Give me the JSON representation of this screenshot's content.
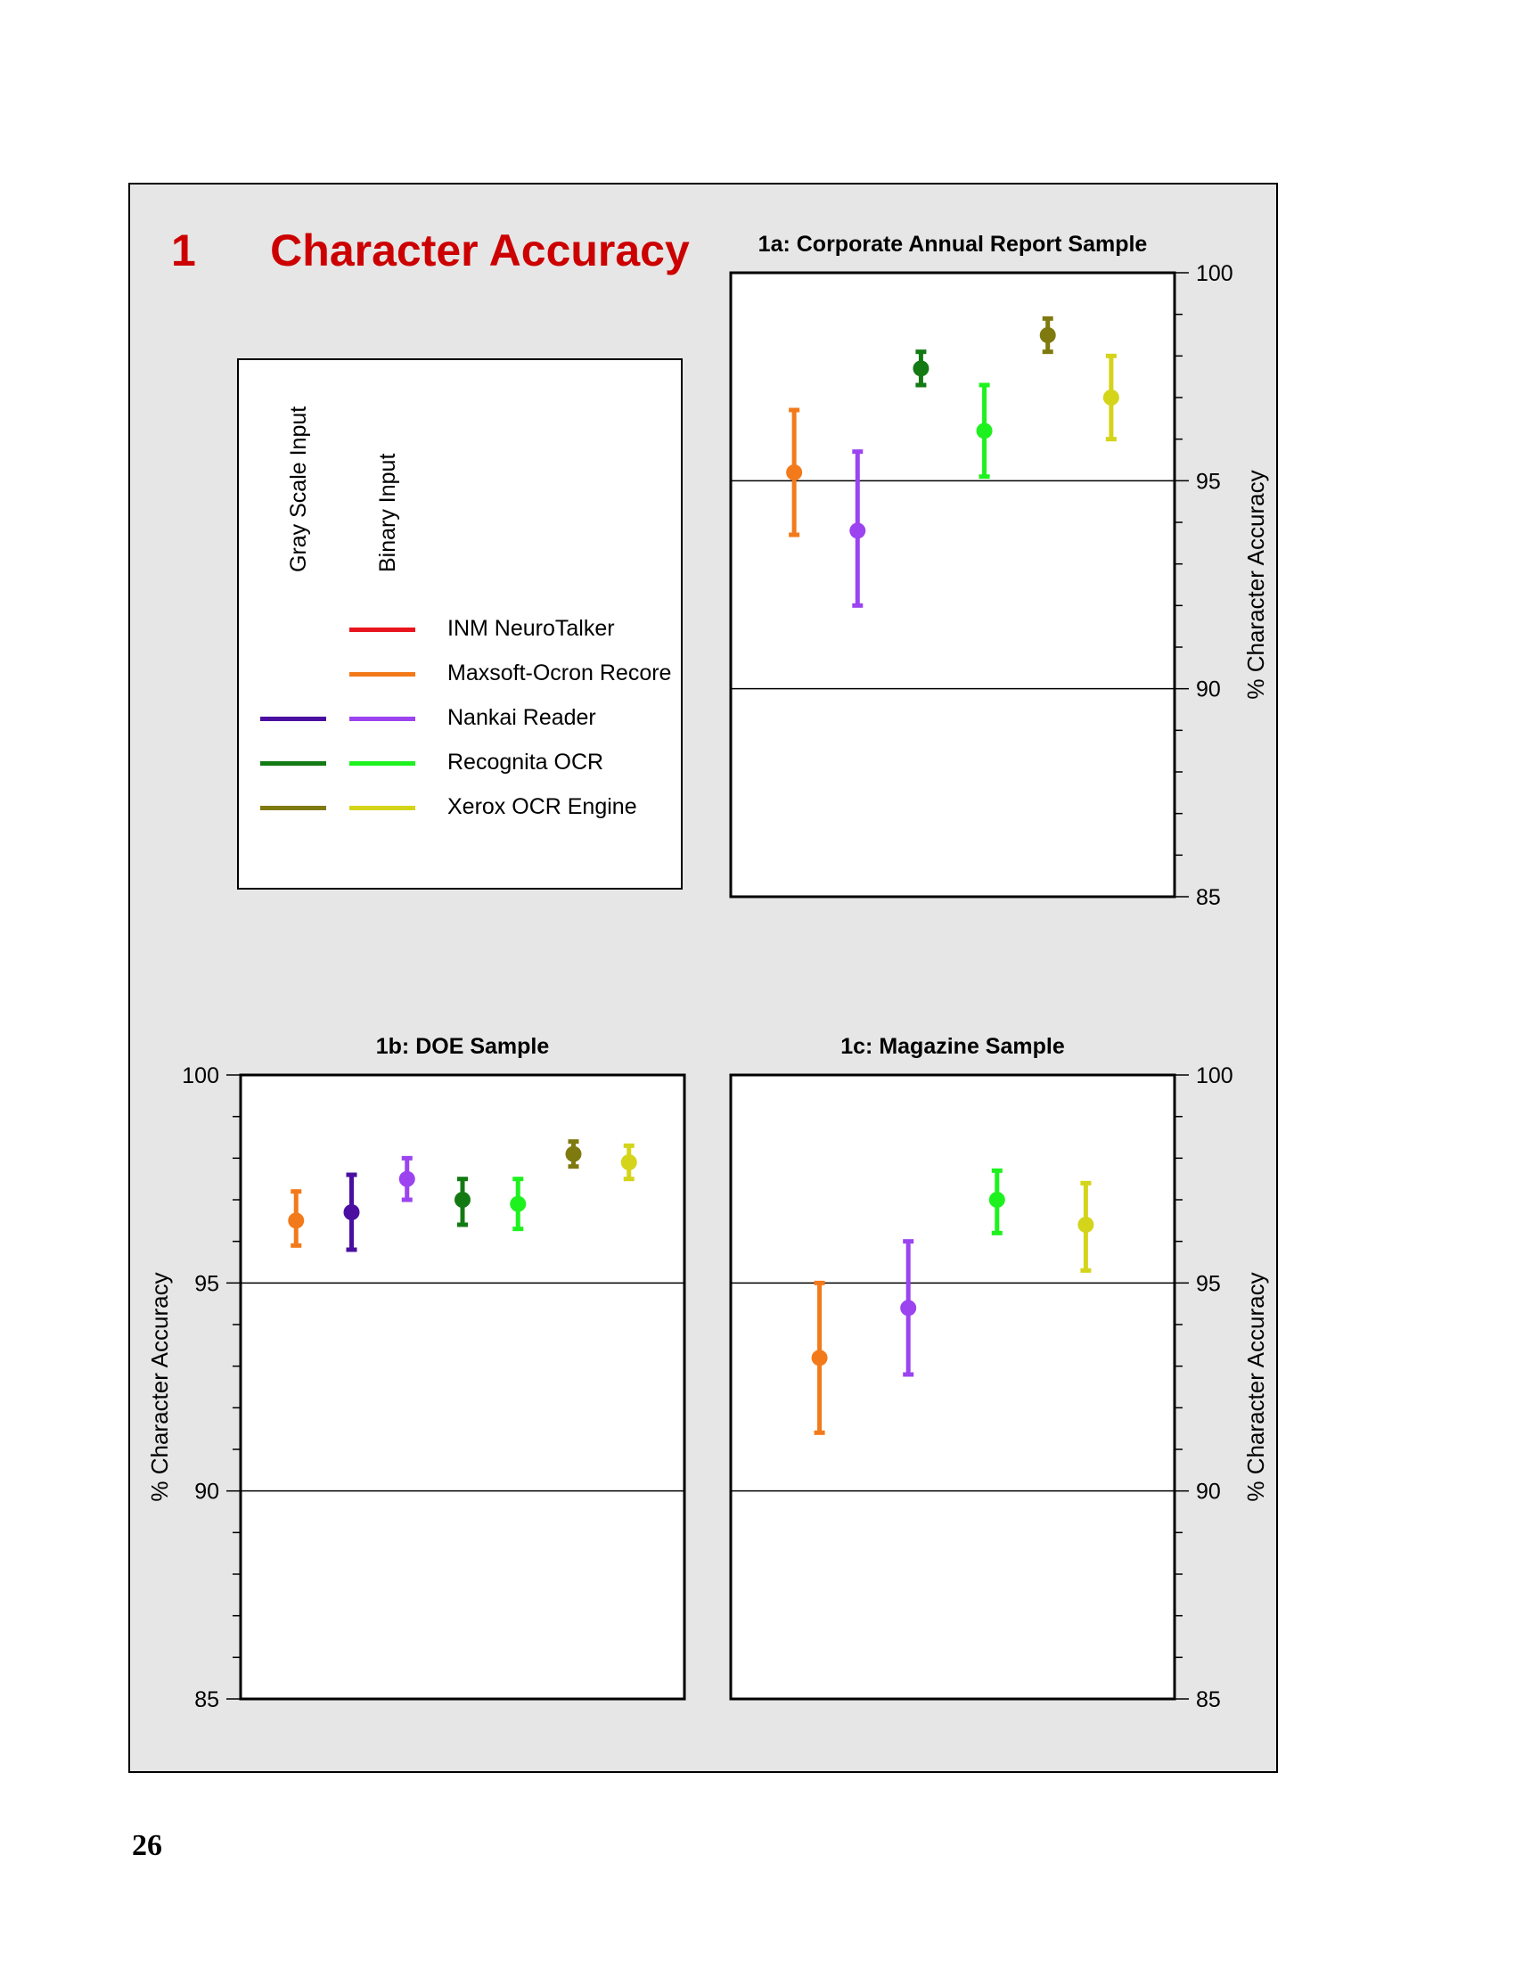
{
  "figure": {
    "number": "1",
    "title": "Character Accuracy",
    "page_number": "26"
  },
  "legend": {
    "column_headers": [
      "Gray Scale Input",
      "Binary Input"
    ],
    "entries": [
      {
        "label": "INM NeuroTalker",
        "gray_color": null,
        "binary_color": "#e8131c"
      },
      {
        "label": "Maxsoft-Ocron Recore",
        "gray_color": null,
        "binary_color": "#f37a1a"
      },
      {
        "label": "Nankai Reader",
        "gray_color": "#4a0fa0",
        "binary_color": "#9b44f0"
      },
      {
        "label": "Recognita OCR",
        "gray_color": "#137a13",
        "binary_color": "#1ef21e"
      },
      {
        "label": "Xerox OCR Engine",
        "gray_color": "#7f7a10",
        "binary_color": "#d4d41a"
      }
    ]
  },
  "chart_data": [
    {
      "type": "scatter",
      "panel": "1a",
      "title": "1a:  Corporate Annual Report Sample",
      "ylabel": "% Character Accuracy",
      "ylim": [
        85,
        100
      ],
      "yticks": [
        "100",
        "95",
        "90",
        "85"
      ],
      "y_axis_side": "right",
      "reference_lines": [
        95,
        90
      ],
      "series": [
        {
          "system": "Maxsoft-Ocron Recore",
          "input": "Binary",
          "color": "#f37a1a",
          "y": 95.2,
          "low": 93.7,
          "high": 96.7
        },
        {
          "system": "Nankai Reader",
          "input": "Binary",
          "color": "#9b44f0",
          "y": 93.8,
          "low": 92.0,
          "high": 95.7
        },
        {
          "system": "Recognita OCR",
          "input": "Gray Scale",
          "color": "#137a13",
          "y": 97.7,
          "low": 97.3,
          "high": 98.1
        },
        {
          "system": "Recognita OCR",
          "input": "Binary",
          "color": "#1ef21e",
          "y": 96.2,
          "low": 95.1,
          "high": 97.3
        },
        {
          "system": "Xerox OCR Engine",
          "input": "Gray Scale",
          "color": "#7f7a10",
          "y": 98.5,
          "low": 98.1,
          "high": 98.9
        },
        {
          "system": "Xerox OCR Engine",
          "input": "Binary",
          "color": "#d4d41a",
          "y": 97.0,
          "low": 96.0,
          "high": 98.0
        }
      ]
    },
    {
      "type": "scatter",
      "panel": "1b",
      "title": "1b:  DOE Sample",
      "ylabel": "% Character Accuracy",
      "ylim": [
        85,
        100
      ],
      "yticks": [
        "100",
        "95",
        "90",
        "85"
      ],
      "y_axis_side": "left",
      "reference_lines": [
        95,
        90
      ],
      "series": [
        {
          "system": "Maxsoft-Ocron Recore",
          "input": "Binary",
          "color": "#f37a1a",
          "y": 96.5,
          "low": 95.9,
          "high": 97.2
        },
        {
          "system": "Nankai Reader",
          "input": "Gray Scale",
          "color": "#4a0fa0",
          "y": 96.7,
          "low": 95.8,
          "high": 97.6
        },
        {
          "system": "Nankai Reader",
          "input": "Binary",
          "color": "#9b44f0",
          "y": 97.5,
          "low": 97.0,
          "high": 98.0
        },
        {
          "system": "Recognita OCR",
          "input": "Gray Scale",
          "color": "#137a13",
          "y": 97.0,
          "low": 96.4,
          "high": 97.5
        },
        {
          "system": "Recognita OCR",
          "input": "Binary",
          "color": "#1ef21e",
          "y": 96.9,
          "low": 96.3,
          "high": 97.5
        },
        {
          "system": "Xerox OCR Engine",
          "input": "Gray Scale",
          "color": "#7f7a10",
          "y": 98.1,
          "low": 97.8,
          "high": 98.4
        },
        {
          "system": "Xerox OCR Engine",
          "input": "Binary",
          "color": "#d4d41a",
          "y": 97.9,
          "low": 97.5,
          "high": 98.3
        }
      ]
    },
    {
      "type": "scatter",
      "panel": "1c",
      "title": "1c:  Magazine Sample",
      "ylabel": "% Character Accuracy",
      "ylim": [
        85,
        100
      ],
      "yticks": [
        "100",
        "95",
        "90",
        "85"
      ],
      "y_axis_side": "right",
      "reference_lines": [
        95,
        90
      ],
      "series": [
        {
          "system": "Maxsoft-Ocron Recore",
          "input": "Binary",
          "color": "#f37a1a",
          "y": 93.2,
          "low": 91.4,
          "high": 95.0
        },
        {
          "system": "Nankai Reader",
          "input": "Binary",
          "color": "#9b44f0",
          "y": 94.4,
          "low": 92.8,
          "high": 96.0
        },
        {
          "system": "Recognita OCR",
          "input": "Binary",
          "color": "#1ef21e",
          "y": 97.0,
          "low": 96.2,
          "high": 97.7
        },
        {
          "system": "Xerox OCR Engine",
          "input": "Binary",
          "color": "#d4d41a",
          "y": 96.4,
          "low": 95.3,
          "high": 97.4
        }
      ]
    }
  ]
}
